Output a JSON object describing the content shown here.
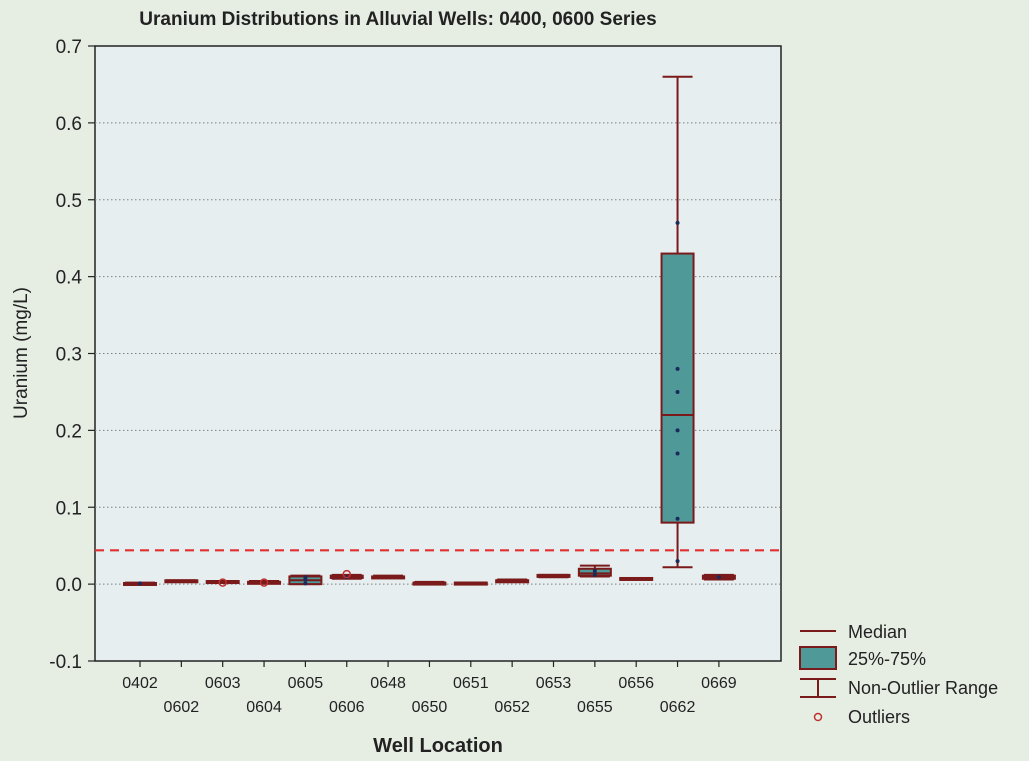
{
  "chart_data": {
    "type": "box",
    "title": "Uranium Distributions in Alluvial Wells: 0400, 0600 Series",
    "xlabel": "Well Location",
    "ylabel": "Uranium (mg/L)",
    "ylim": [
      -0.1,
      0.7
    ],
    "yticks": [
      "-0.1",
      "0.0",
      "0.1",
      "0.2",
      "0.3",
      "0.4",
      "0.5",
      "0.6",
      "0.7"
    ],
    "grid": true,
    "reference_line": {
      "value": 0.044,
      "color": "#e03030",
      "style": "dashed"
    },
    "categories": [
      "0402",
      "0602",
      "0603",
      "0604",
      "0605",
      "0606",
      "0648",
      "0650",
      "0651",
      "0652",
      "0653",
      "0655",
      "0656",
      "0662",
      "0669"
    ],
    "boxes": [
      {
        "category": "0402",
        "min": 0.0005,
        "q1": 0.0008,
        "median": 0.001,
        "q3": 0.0015,
        "max": 0.002,
        "outliers": [],
        "points": [
          0.001
        ]
      },
      {
        "category": "0602",
        "min": 0.003,
        "q1": 0.003,
        "median": 0.004,
        "q3": 0.005,
        "max": 0.005,
        "outliers": [],
        "points": []
      },
      {
        "category": "0603",
        "min": 0.002,
        "q1": 0.0025,
        "median": 0.003,
        "q3": 0.004,
        "max": 0.004,
        "outliers": [
          0.002
        ],
        "points": []
      },
      {
        "category": "0604",
        "min": 0.002,
        "q1": 0.002,
        "median": 0.003,
        "q3": 0.003,
        "max": 0.004,
        "outliers": [
          0.002
        ],
        "points": []
      },
      {
        "category": "0605",
        "min": 0.0,
        "q1": 0.0,
        "median": 0.005,
        "q3": 0.01,
        "max": 0.011,
        "outliers": [],
        "points": [
          0.001,
          0.006,
          0.009
        ]
      },
      {
        "category": "0606",
        "min": 0.007,
        "q1": 0.008,
        "median": 0.009,
        "q3": 0.011,
        "max": 0.012,
        "outliers": [
          0.013
        ],
        "points": [
          0.009
        ]
      },
      {
        "category": "0648",
        "min": 0.009,
        "q1": 0.009,
        "median": 0.01,
        "q3": 0.01,
        "max": 0.011,
        "outliers": [],
        "points": []
      },
      {
        "category": "0650",
        "min": 0.001,
        "q1": 0.0015,
        "median": 0.002,
        "q3": 0.002,
        "max": 0.003,
        "outliers": [],
        "points": []
      },
      {
        "category": "0651",
        "min": 0.001,
        "q1": 0.001,
        "median": 0.002,
        "q3": 0.002,
        "max": 0.002,
        "outliers": [],
        "points": []
      },
      {
        "category": "0652",
        "min": 0.004,
        "q1": 0.004,
        "median": 0.005,
        "q3": 0.005,
        "max": 0.006,
        "outliers": [],
        "points": []
      },
      {
        "category": "0653",
        "min": 0.009,
        "q1": 0.01,
        "median": 0.011,
        "q3": 0.012,
        "max": 0.012,
        "outliers": [],
        "points": []
      },
      {
        "category": "0655",
        "min": 0.01,
        "q1": 0.011,
        "median": 0.014,
        "q3": 0.02,
        "max": 0.024,
        "outliers": [],
        "points": [
          0.012,
          0.017
        ]
      },
      {
        "category": "0656",
        "min": 0.006,
        "q1": 0.006,
        "median": 0.007,
        "q3": 0.008,
        "max": 0.008,
        "outliers": [],
        "points": []
      },
      {
        "category": "0662",
        "min": 0.022,
        "q1": 0.08,
        "median": 0.22,
        "q3": 0.43,
        "max": 0.66,
        "outliers": [],
        "points": [
          0.03,
          0.085,
          0.17,
          0.2,
          0.25,
          0.28,
          0.47
        ]
      },
      {
        "category": "0669",
        "min": 0.006,
        "q1": 0.007,
        "median": 0.009,
        "q3": 0.011,
        "max": 0.012,
        "outliers": [],
        "points": [
          0.009
        ]
      }
    ],
    "legend": {
      "position": "bottom-right",
      "items": [
        "Median",
        "25%-75%",
        "Non-Outlier Range",
        "Outliers"
      ]
    },
    "colors": {
      "box_fill": "#4f9999",
      "box_stroke": "#7a1a1a",
      "whisker": "#7a1a1a",
      "outlier": "#c03030",
      "point": "#1a2a5a",
      "plot_bg": "#e6eef0",
      "page_bg": "#e6eee4",
      "grid": "#808080"
    }
  }
}
